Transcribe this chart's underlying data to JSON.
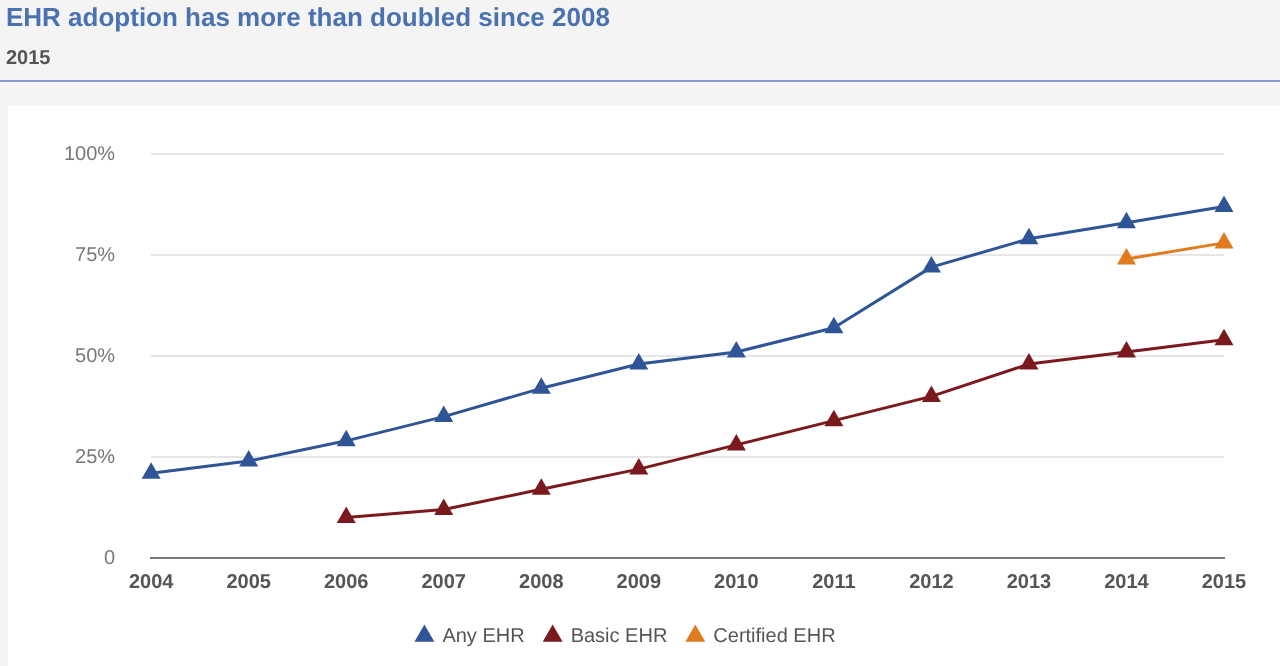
{
  "chart_data": {
    "type": "line",
    "title": "EHR adoption has more than doubled since 2008",
    "subtitle": "2015",
    "categories": [
      "2004",
      "2005",
      "2006",
      "2007",
      "2008",
      "2009",
      "2010",
      "2011",
      "2012",
      "2013",
      "2014",
      "2015"
    ],
    "series": [
      {
        "name": "Any EHR",
        "color": "#2f5597",
        "values": [
          21,
          24,
          29,
          35,
          42,
          48,
          51,
          57,
          72,
          79,
          83,
          87
        ]
      },
      {
        "name": "Basic EHR",
        "color": "#7b1a1e",
        "values": [
          null,
          null,
          10,
          12,
          17,
          22,
          28,
          34,
          40,
          48,
          51,
          54
        ]
      },
      {
        "name": "Certified EHR",
        "color": "#e07b20",
        "values": [
          null,
          null,
          null,
          null,
          null,
          null,
          null,
          null,
          null,
          null,
          74,
          78
        ]
      }
    ],
    "ylim": [
      0,
      100
    ],
    "yticks": [
      {
        "value": 0,
        "label": "0"
      },
      {
        "value": 25,
        "label": "25%"
      },
      {
        "value": 50,
        "label": "50%"
      },
      {
        "value": 75,
        "label": "75%"
      },
      {
        "value": 100,
        "label": "100%"
      }
    ],
    "grid": "y",
    "legend": "bottom",
    "marker": "triangle",
    "line_style": "solid"
  }
}
